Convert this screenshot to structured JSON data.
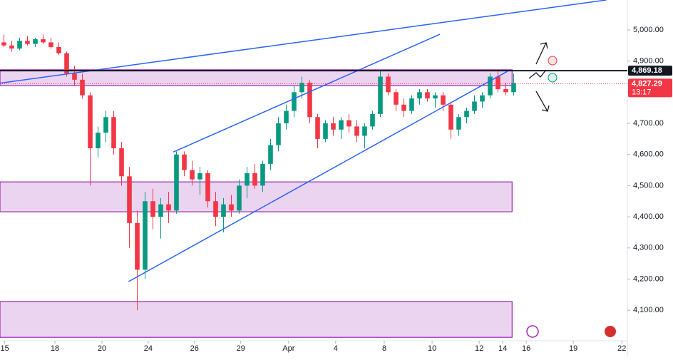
{
  "chart_data": {
    "type": "candlestick",
    "xlim": [
      0,
      80
    ],
    "ylim": [
      4002,
      5096
    ],
    "xticks": [
      {
        "value": 0.6,
        "label": "15"
      },
      {
        "value": 7,
        "label": "18"
      },
      {
        "value": 13,
        "label": "20"
      },
      {
        "value": 18.9,
        "label": "24"
      },
      {
        "value": 24.8,
        "label": "26"
      },
      {
        "value": 30.7,
        "label": "29"
      },
      {
        "value": 36.8,
        "label": "Apr"
      },
      {
        "value": 42.8,
        "label": "4"
      },
      {
        "value": 49,
        "label": "8"
      },
      {
        "value": 55.1,
        "label": "10"
      },
      {
        "value": 61.1,
        "label": "12"
      },
      {
        "value": 64.1,
        "label": "14"
      },
      {
        "value": 67.1,
        "label": "16"
      },
      {
        "value": 73.1,
        "label": "19"
      },
      {
        "value": 79.3,
        "label": "22"
      }
    ],
    "yticks": [
      {
        "value": 4100,
        "label": "4,100.00"
      },
      {
        "value": 4200,
        "label": "4,200.00"
      },
      {
        "value": 4300,
        "label": "4,300.00"
      },
      {
        "value": 4400,
        "label": "4,400.00"
      },
      {
        "value": 4500,
        "label": "4,500.00"
      },
      {
        "value": 4600,
        "label": "4,600.00"
      },
      {
        "value": 4700,
        "label": "4,700.00"
      },
      {
        "value": 4800,
        "label": "4,800.00"
      },
      {
        "value": 4900,
        "label": "4,900.00"
      },
      {
        "value": 5000,
        "label": "5,000.00"
      }
    ],
    "up_color": "#089981",
    "down_color": "#f23645",
    "x": [
      0.5,
      1.5,
      2.5,
      3.5,
      4.5,
      5.5,
      6.5,
      7.5,
      8.5,
      9.5,
      10.5,
      11.5,
      12.5,
      13.5,
      14.5,
      15.5,
      16.5,
      17.5,
      18.5,
      19.5,
      20.5,
      21.5,
      22.5,
      23.5,
      24.5,
      25.5,
      26.5,
      27.5,
      28.5,
      29.5,
      30.5,
      31.5,
      32.5,
      33.5,
      34.5,
      35.5,
      36.5,
      37.5,
      38.5,
      39.5,
      40.5,
      41.5,
      42.5,
      43.5,
      44.5,
      45.5,
      46.5,
      47.5,
      48.5,
      49.5,
      50.5,
      51.5,
      52.5,
      53.5,
      54.5,
      55.5,
      56.5,
      57.5,
      58.5,
      59.5,
      60.5,
      61.5,
      62.5,
      63.5,
      64.5,
      65.5
    ],
    "open": [
      4960,
      4950,
      4940,
      4965,
      4955,
      4970,
      4960,
      4945,
      4925,
      4860,
      4840,
      4790,
      4620,
      4670,
      4720,
      4620,
      4530,
      4380,
      4230,
      4450,
      4400,
      4440,
      4420,
      4600,
      4550,
      4520,
      4540,
      4450,
      4400,
      4440,
      4420,
      4500,
      4540,
      4500,
      4570,
      4630,
      4700,
      4740,
      4800,
      4830,
      4720,
      4650,
      4700,
      4680,
      4710,
      4690,
      4660,
      4690,
      4730,
      4850,
      4800,
      4760,
      4740,
      4780,
      4800,
      4780,
      4790,
      4760,
      4680,
      4720,
      4740,
      4770,
      4790,
      4850,
      4810,
      4800
    ],
    "high": [
      4985,
      4965,
      4975,
      4980,
      4975,
      4985,
      4975,
      4960,
      4930,
      4885,
      4860,
      4800,
      4690,
      4740,
      4740,
      4640,
      4560,
      4420,
      4480,
      4490,
      4460,
      4480,
      4610,
      4610,
      4580,
      4560,
      4550,
      4480,
      4460,
      4470,
      4520,
      4560,
      4570,
      4580,
      4650,
      4720,
      4760,
      4820,
      4850,
      4840,
      4730,
      4710,
      4720,
      4720,
      4730,
      4710,
      4700,
      4740,
      4870,
      4860,
      4810,
      4780,
      4790,
      4810,
      4810,
      4800,
      4800,
      4770,
      4730,
      4750,
      4790,
      4800,
      4860,
      4870,
      4830,
      4860
    ],
    "low": [
      4945,
      4930,
      4935,
      4950,
      4945,
      4955,
      4940,
      4920,
      4850,
      4820,
      4780,
      4500,
      4590,
      4640,
      4600,
      4500,
      4300,
      4100,
      4200,
      4360,
      4330,
      4380,
      4410,
      4530,
      4500,
      4470,
      4430,
      4370,
      4350,
      4400,
      4410,
      4460,
      4490,
      4480,
      4550,
      4610,
      4680,
      4720,
      4780,
      4700,
      4620,
      4640,
      4660,
      4650,
      4670,
      4640,
      4620,
      4680,
      4720,
      4790,
      4740,
      4720,
      4730,
      4760,
      4770,
      4750,
      4740,
      4650,
      4660,
      4700,
      4730,
      4750,
      4780,
      4800,
      4790,
      4790
    ],
    "close": [
      4950,
      4940,
      4965,
      4955,
      4970,
      4960,
      4945,
      4925,
      4860,
      4840,
      4790,
      4620,
      4670,
      4720,
      4620,
      4530,
      4380,
      4230,
      4450,
      4400,
      4440,
      4420,
      4600,
      4550,
      4520,
      4540,
      4450,
      4400,
      4440,
      4420,
      4500,
      4540,
      4500,
      4570,
      4630,
      4700,
      4740,
      4800,
      4830,
      4720,
      4650,
      4700,
      4680,
      4710,
      4690,
      4660,
      4690,
      4730,
      4850,
      4800,
      4760,
      4740,
      4780,
      4800,
      4780,
      4790,
      4760,
      4680,
      4720,
      4740,
      4770,
      4790,
      4850,
      4810,
      4800,
      4830
    ],
    "trend_lines": [
      {
        "x1": 0,
        "y1": 4829,
        "x2": 77.3,
        "y2": 5096
      },
      {
        "x1": 22.1,
        "y1": 4608,
        "x2": 56.1,
        "y2": 4986
      },
      {
        "x1": 16.4,
        "y1": 4192,
        "x2": 64.7,
        "y2": 4867
      }
    ],
    "zones": [
      {
        "x1": 0,
        "x2": 65.3,
        "ymin": 4821,
        "ymax": 4872
      },
      {
        "x1": 0,
        "x2": 65.3,
        "ymin": 4416,
        "ymax": 4512
      },
      {
        "x1": 0,
        "x2": 65.3,
        "ymin": 4013,
        "ymax": 4128
      }
    ],
    "price_lines": [
      {
        "value": 4869.18,
        "label": "4,869.18",
        "color": "#131722"
      },
      {
        "value": 4827.29,
        "label": "4,827.29",
        "countdown": "13:17",
        "color": "#f23645"
      }
    ]
  }
}
